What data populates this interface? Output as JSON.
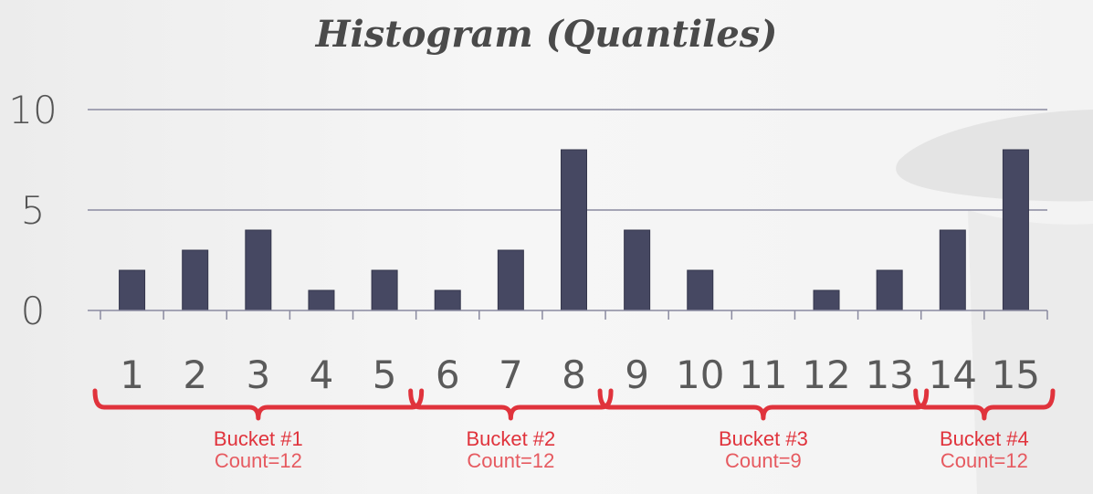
{
  "chart_data": {
    "type": "bar",
    "title": "Histogram (Quantiles)",
    "xlabel": "",
    "ylabel": "",
    "categories": [
      "1",
      "2",
      "3",
      "4",
      "5",
      "6",
      "7",
      "8",
      "9",
      "10",
      "11",
      "12",
      "13",
      "14",
      "15"
    ],
    "values": [
      2,
      3,
      4,
      1,
      2,
      1,
      3,
      8,
      4,
      2,
      0,
      1,
      2,
      4,
      8
    ],
    "ylim": [
      0,
      10
    ],
    "yticks": [
      "0",
      "5",
      "10"
    ],
    "grid": true,
    "buckets": [
      {
        "label": "Bucket #1",
        "count": "Count=12",
        "from": 1,
        "to": 5
      },
      {
        "label": "Bucket #2",
        "count": "Count=12",
        "from": 6,
        "to": 8
      },
      {
        "label": "Bucket #3",
        "count": "Count=9",
        "from": 9,
        "to": 13
      },
      {
        "label": "Bucket #4",
        "count": "Count=12",
        "from": 14,
        "to": 15
      }
    ],
    "colors": {
      "bar": "#464862",
      "bucket": "#e0333c",
      "grid": "#8a8aa0"
    }
  }
}
